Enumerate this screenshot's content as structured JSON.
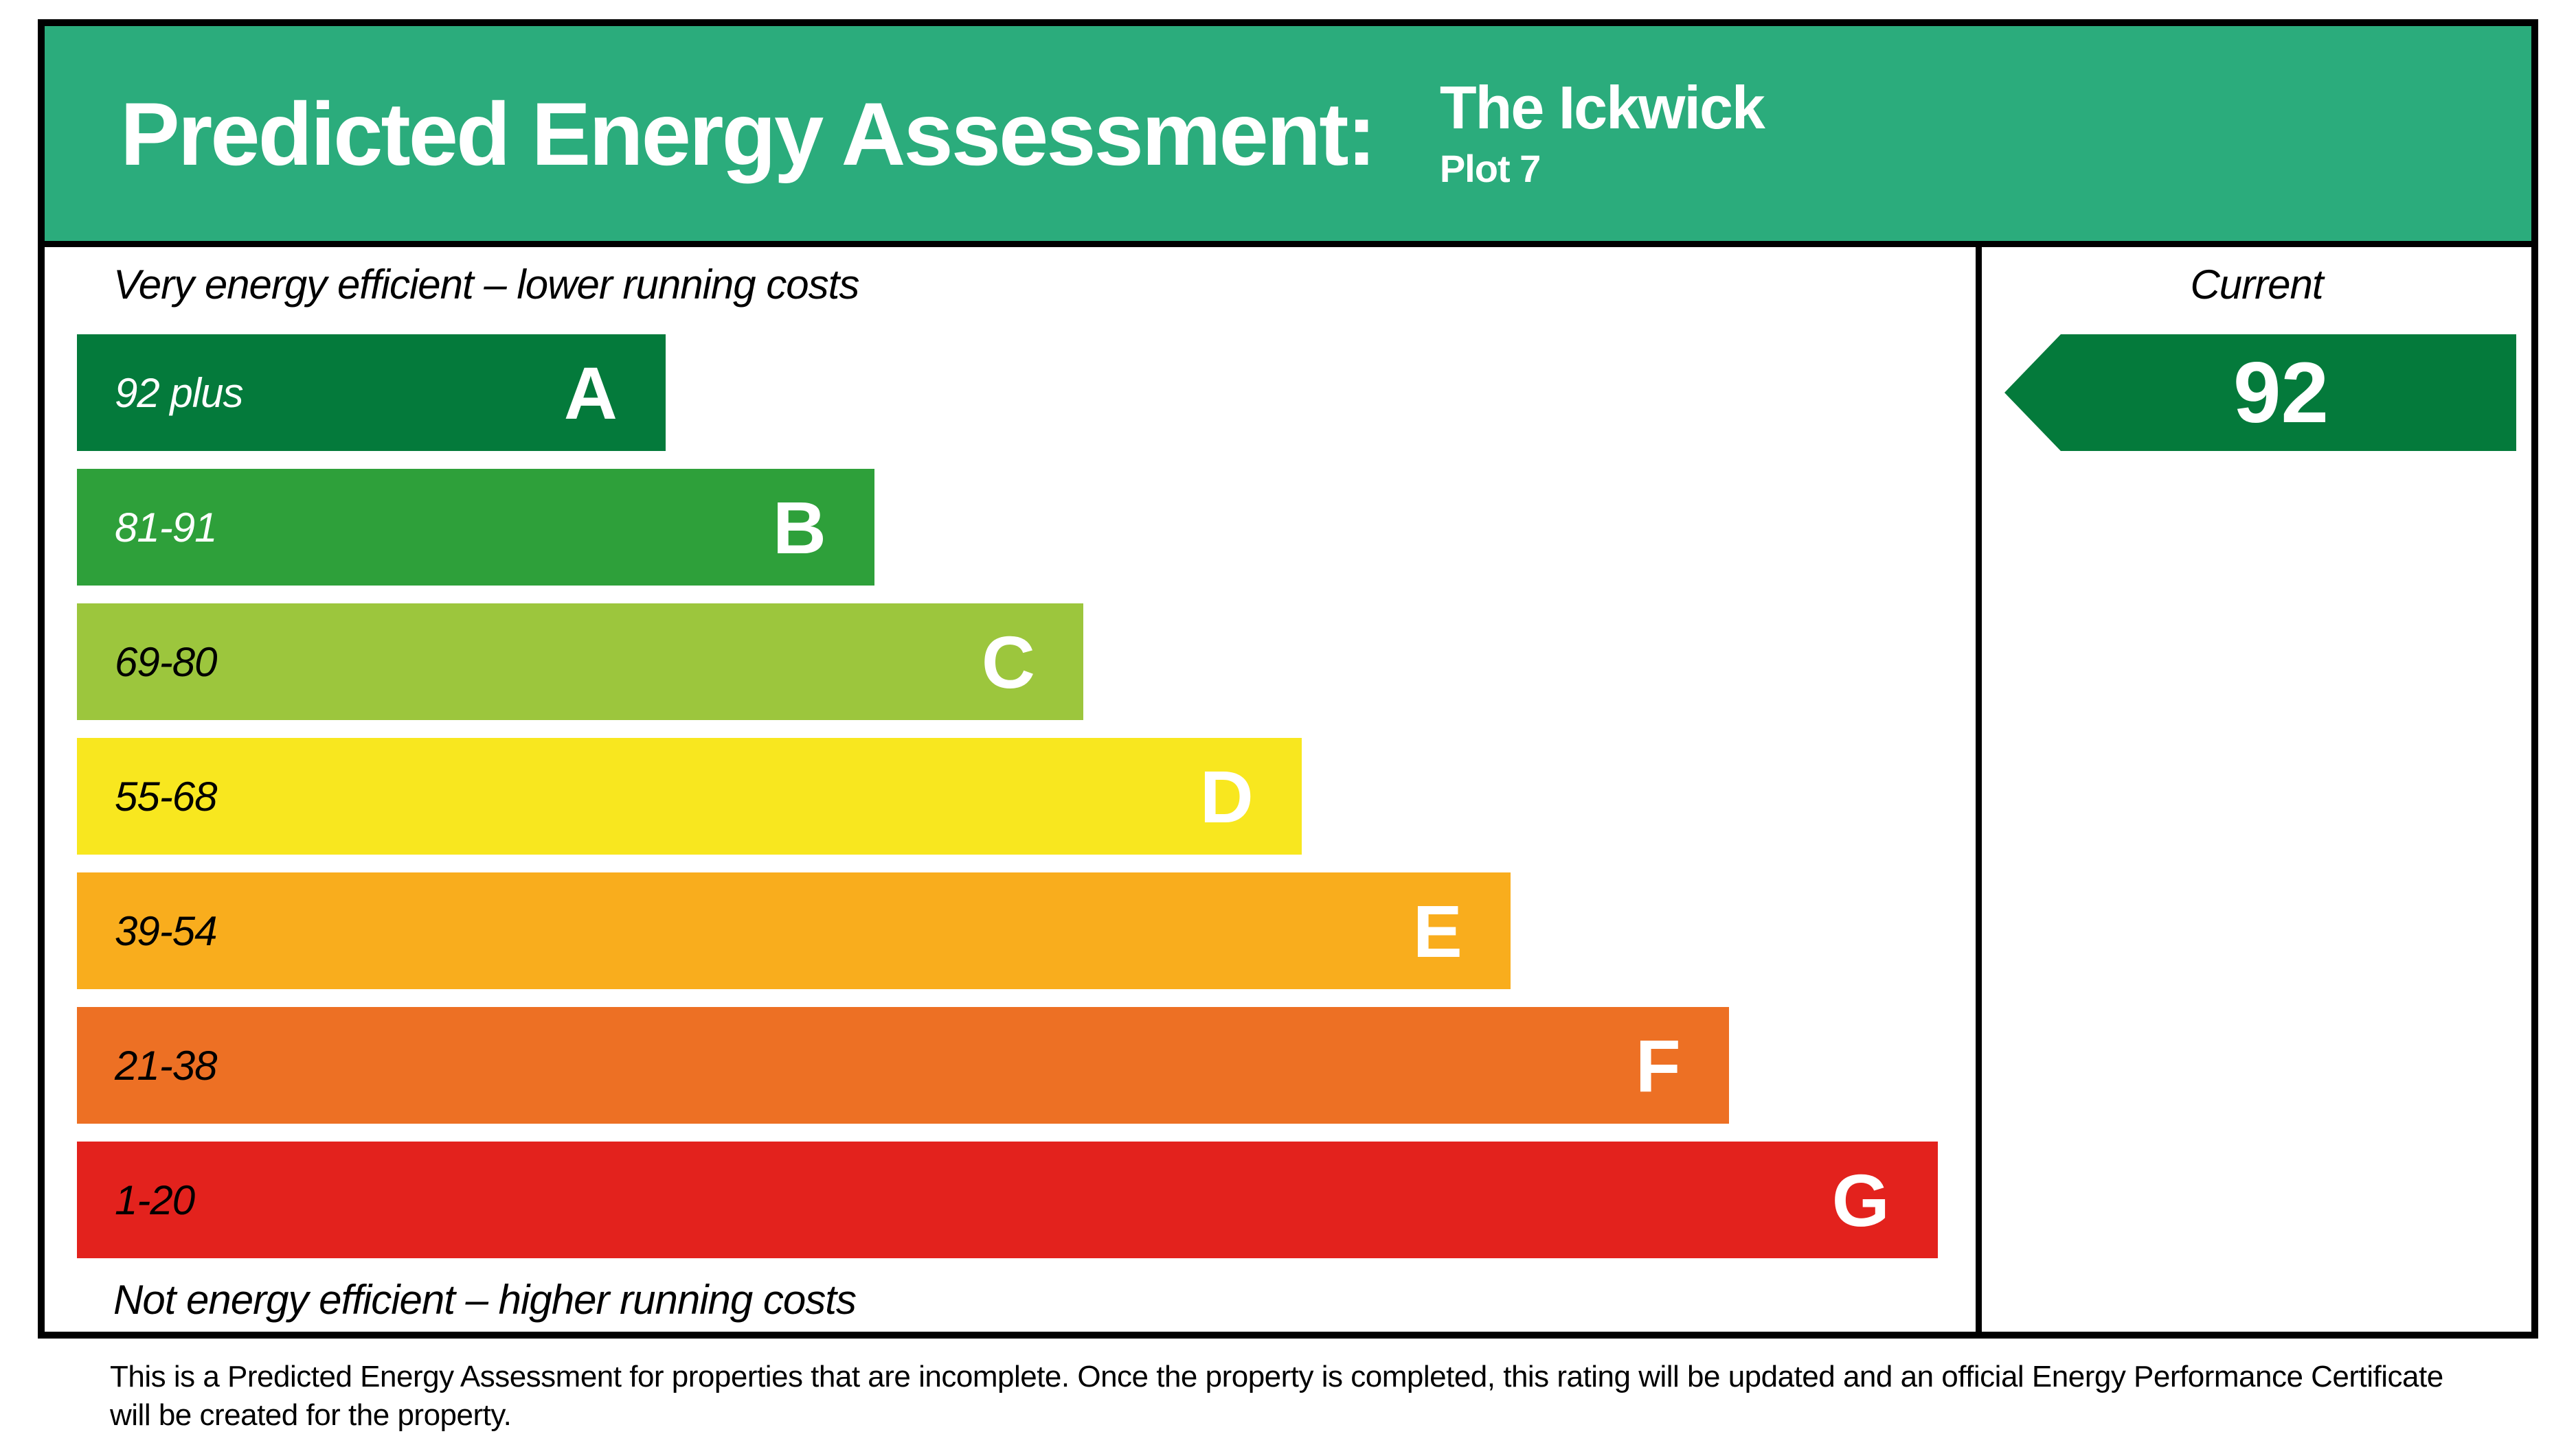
{
  "header": {
    "title": "Predicted Energy Assessment:",
    "property_name": "The Ickwick",
    "plot": "Plot 7",
    "bg_color": "#2bac7c",
    "text_color": "#ffffff"
  },
  "chart_data": {
    "type": "bar",
    "title": "Predicted Energy Assessment",
    "top_caption": "Very energy efficient – lower running costs",
    "bottom_caption": "Not energy efficient – higher running costs",
    "categories": [
      "A",
      "B",
      "C",
      "D",
      "E",
      "F",
      "G"
    ],
    "bands": [
      {
        "letter": "A",
        "range": "92 plus",
        "color": "#047a3b",
        "range_text_color": "#ffffff",
        "width_pct": 31
      },
      {
        "letter": "B",
        "range": "81-91",
        "color": "#2ea03a",
        "range_text_color": "#ffffff",
        "width_pct": 42
      },
      {
        "letter": "C",
        "range": "69-80",
        "color": "#9cc63d",
        "range_text_color": "#000000",
        "width_pct": 53
      },
      {
        "letter": "D",
        "range": "55-68",
        "color": "#f8e71f",
        "range_text_color": "#000000",
        "width_pct": 64.5
      },
      {
        "letter": "E",
        "range": "39-54",
        "color": "#f9ad1d",
        "range_text_color": "#000000",
        "width_pct": 75.5
      },
      {
        "letter": "F",
        "range": "21-38",
        "color": "#ed7024",
        "range_text_color": "#000000",
        "width_pct": 87
      },
      {
        "letter": "G",
        "range": "1-20",
        "color": "#e3221d",
        "range_text_color": "#000000",
        "width_pct": 98
      }
    ],
    "current": {
      "label": "Current",
      "value": "92",
      "band": "A",
      "color": "#047a3b"
    },
    "legend_position": "none",
    "grid": false
  },
  "footer": {
    "text": "This is a Predicted Energy Assessment for properties that are incomplete. Once the property is completed, this rating will be updated and an official Energy Performance Certificate will be created for the property."
  }
}
